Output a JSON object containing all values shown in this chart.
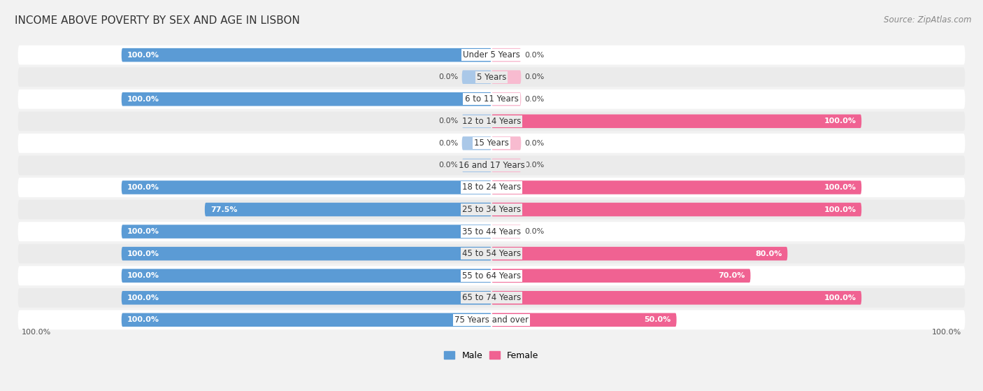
{
  "title": "INCOME ABOVE POVERTY BY SEX AND AGE IN LISBON",
  "source": "Source: ZipAtlas.com",
  "categories": [
    "Under 5 Years",
    "5 Years",
    "6 to 11 Years",
    "12 to 14 Years",
    "15 Years",
    "16 and 17 Years",
    "18 to 24 Years",
    "25 to 34 Years",
    "35 to 44 Years",
    "45 to 54 Years",
    "55 to 64 Years",
    "65 to 74 Years",
    "75 Years and over"
  ],
  "male": [
    100.0,
    0.0,
    100.0,
    0.0,
    0.0,
    0.0,
    100.0,
    77.5,
    100.0,
    100.0,
    100.0,
    100.0,
    100.0
  ],
  "female": [
    0.0,
    0.0,
    0.0,
    100.0,
    0.0,
    0.0,
    100.0,
    100.0,
    0.0,
    80.0,
    70.0,
    100.0,
    50.0
  ],
  "male_color": "#5b9bd5",
  "female_color": "#f06292",
  "male_stub_color": "#aac8e8",
  "female_stub_color": "#f8bbd0",
  "bg_color": "#f2f2f2",
  "row_light": "#ffffff",
  "row_dark": "#ebebeb",
  "title_fontsize": 11,
  "label_fontsize": 8.5,
  "value_fontsize": 8,
  "source_fontsize": 8.5,
  "max_val": 100.0,
  "stub_val": 8.0
}
